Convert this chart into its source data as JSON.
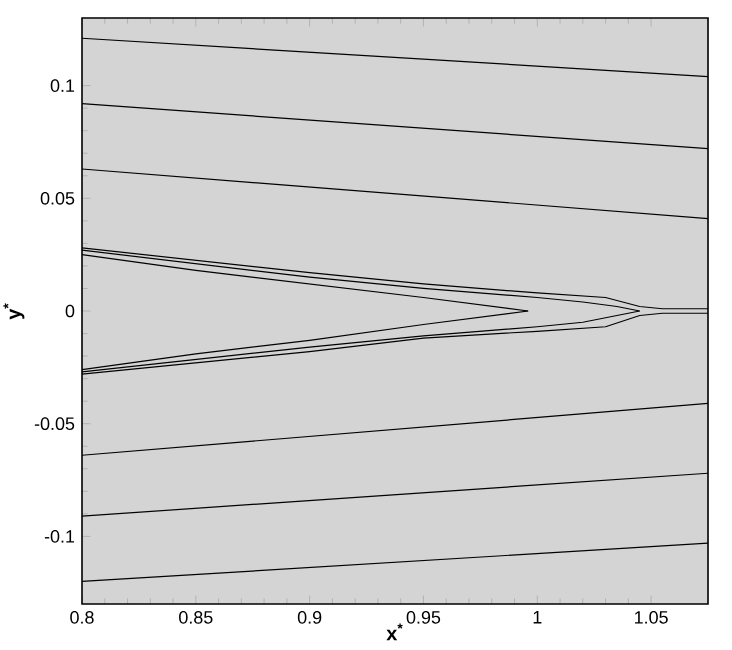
{
  "chart_data": {
    "type": "line",
    "xlabel": "x$^{*}$",
    "ylabel": "y$^{*}$",
    "xlim": [
      0.8,
      1.075
    ],
    "ylim": [
      -0.13,
      0.13
    ],
    "xticks": [
      0.8,
      0.85,
      0.9,
      0.95,
      1,
      1.05
    ],
    "yticks": [
      -0.1,
      -0.05,
      0,
      0.05,
      0.1
    ],
    "marker": "none",
    "line_style": "solid",
    "grid": false,
    "series": [
      {
        "color": "#000000",
        "x": [
          0.8,
          1.075
        ],
        "values": [
          0.121,
          0.104
        ]
      },
      {
        "color": "#000000",
        "x": [
          0.8,
          1.075
        ],
        "values": [
          0.092,
          0.072
        ]
      },
      {
        "color": "#000000",
        "x": [
          0.8,
          1.075
        ],
        "values": [
          0.063,
          0.041
        ]
      },
      {
        "color": "#000000",
        "x": [
          0.8,
          1.075
        ],
        "values": [
          -0.064,
          -0.041
        ]
      },
      {
        "color": "#000000",
        "x": [
          0.8,
          1.075
        ],
        "values": [
          -0.091,
          -0.072
        ]
      },
      {
        "color": "#000000",
        "x": [
          0.8,
          1.075
        ],
        "values": [
          -0.12,
          -0.103
        ]
      },
      {
        "color": "#000000",
        "x": [
          0.8,
          0.9,
          0.95,
          1.0,
          1.03,
          1.045,
          1.055,
          1.075
        ],
        "values": [
          0.028,
          0.017,
          0.012,
          0.008,
          0.006,
          0.002,
          0.001,
          0.001
        ]
      },
      {
        "color": "#000000",
        "x": [
          0.8,
          0.9,
          0.95,
          1.0,
          1.02,
          1.035,
          1.045
        ],
        "values": [
          0.027,
          0.015,
          0.01,
          0.006,
          0.004,
          0.002,
          0.0
        ]
      },
      {
        "color": "#000000",
        "x": [
          0.8,
          0.85,
          0.9,
          0.95,
          0.996
        ],
        "values": [
          0.025,
          0.018,
          0.012,
          0.006,
          0.0
        ]
      },
      {
        "color": "#000000",
        "x": [
          0.8,
          0.85,
          0.9,
          0.95,
          0.996
        ],
        "values": [
          -0.026,
          -0.019,
          -0.013,
          -0.006,
          0.0
        ]
      },
      {
        "color": "#000000",
        "x": [
          0.8,
          0.9,
          0.95,
          1.0,
          1.02,
          1.035,
          1.045
        ],
        "values": [
          -0.027,
          -0.016,
          -0.011,
          -0.007,
          -0.005,
          -0.002,
          0.0
        ]
      },
      {
        "color": "#000000",
        "x": [
          0.8,
          0.9,
          0.95,
          1.0,
          1.03,
          1.045,
          1.055,
          1.075
        ],
        "values": [
          -0.028,
          -0.018,
          -0.012,
          -0.009,
          -0.007,
          -0.002,
          -0.001,
          -0.001
        ]
      }
    ]
  }
}
